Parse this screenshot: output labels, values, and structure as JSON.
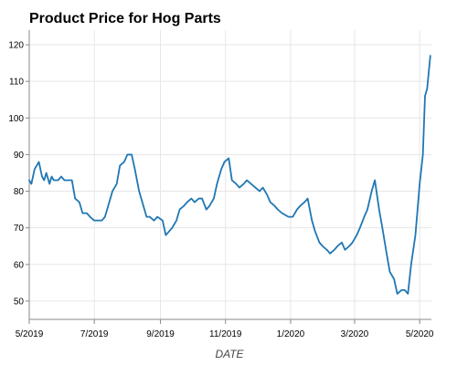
{
  "chart_data": {
    "type": "line",
    "title": "Product Price for Hog Parts",
    "xlabel": "DATE",
    "ylabel": "",
    "x_range": [
      "2019-05-01",
      "2020-05-12"
    ],
    "ylim": [
      45,
      124
    ],
    "grid": true,
    "legend": "none",
    "line_color": "#1f77b4",
    "x_ticks": [
      {
        "date": "2019-05-01",
        "label": "5/2019"
      },
      {
        "date": "2019-07-01",
        "label": "7/2019"
      },
      {
        "date": "2019-09-01",
        "label": "9/2019"
      },
      {
        "date": "2019-11-01",
        "label": "11/2019"
      },
      {
        "date": "2020-01-01",
        "label": "1/2020"
      },
      {
        "date": "2020-03-01",
        "label": "3/2020"
      },
      {
        "date": "2020-05-01",
        "label": "5/2020"
      }
    ],
    "y_ticks": [
      50,
      60,
      70,
      80,
      90,
      100,
      110,
      120
    ],
    "series": [
      {
        "x": [
          "2019-05-01",
          "2019-05-03",
          "2019-05-06",
          "2019-05-08",
          "2019-05-10",
          "2019-05-13",
          "2019-05-15",
          "2019-05-17",
          "2019-05-20",
          "2019-05-22",
          "2019-05-24",
          "2019-05-28",
          "2019-05-31",
          "2019-06-03",
          "2019-06-06",
          "2019-06-10",
          "2019-06-13",
          "2019-06-17",
          "2019-06-20",
          "2019-06-24",
          "2019-06-27",
          "2019-07-01",
          "2019-07-05",
          "2019-07-08",
          "2019-07-11",
          "2019-07-15",
          "2019-07-18",
          "2019-07-22",
          "2019-07-25",
          "2019-07-29",
          "2019-08-01",
          "2019-08-05",
          "2019-08-08",
          "2019-08-12",
          "2019-08-15",
          "2019-08-19",
          "2019-08-22",
          "2019-08-26",
          "2019-08-29",
          "2019-09-03",
          "2019-09-06",
          "2019-09-09",
          "2019-09-12",
          "2019-09-16",
          "2019-09-19",
          "2019-09-23",
          "2019-09-26",
          "2019-09-30",
          "2019-10-03",
          "2019-10-07",
          "2019-10-10",
          "2019-10-14",
          "2019-10-17",
          "2019-10-21",
          "2019-10-24",
          "2019-10-28",
          "2019-10-31",
          "2019-11-04",
          "2019-11-07",
          "2019-11-11",
          "2019-11-14",
          "2019-11-18",
          "2019-11-21",
          "2019-11-25",
          "2019-11-29",
          "2019-12-03",
          "2019-12-06",
          "2019-12-10",
          "2019-12-13",
          "2019-12-17",
          "2019-12-20",
          "2019-12-24",
          "2019-12-30",
          "2020-01-03",
          "2020-01-07",
          "2020-01-10",
          "2020-01-14",
          "2020-01-17",
          "2020-01-21",
          "2020-01-24",
          "2020-01-28",
          "2020-01-31",
          "2020-02-04",
          "2020-02-07",
          "2020-02-11",
          "2020-02-14",
          "2020-02-18",
          "2020-02-21",
          "2020-02-25",
          "2020-02-28",
          "2020-03-03",
          "2020-03-06",
          "2020-03-10",
          "2020-03-13",
          "2020-03-17",
          "2020-03-20",
          "2020-03-24",
          "2020-03-27",
          "2020-03-31",
          "2020-04-03",
          "2020-04-07",
          "2020-04-10",
          "2020-04-14",
          "2020-04-17",
          "2020-04-20",
          "2020-04-23",
          "2020-04-27",
          "2020-04-29",
          "2020-05-01",
          "2020-05-04",
          "2020-05-06",
          "2020-05-08",
          "2020-05-11"
        ],
        "y": [
          83,
          82,
          86,
          87,
          88,
          84,
          83,
          85,
          82,
          84,
          83,
          83,
          84,
          83,
          83,
          83,
          78,
          77,
          74,
          74,
          73,
          72,
          72,
          72,
          73,
          77,
          80,
          82,
          87,
          88,
          90,
          90,
          86,
          80,
          77,
          73,
          73,
          72,
          73,
          72,
          68,
          69,
          70,
          72,
          75,
          76,
          77,
          78,
          77,
          78,
          78,
          75,
          76,
          78,
          82,
          86,
          88,
          89,
          83,
          82,
          81,
          82,
          83,
          82,
          81,
          80,
          81,
          79,
          77,
          76,
          75,
          74,
          73,
          73,
          75,
          76,
          77,
          78,
          72,
          69,
          66,
          65,
          64,
          63,
          64,
          65,
          66,
          64,
          65,
          66,
          68,
          70,
          73,
          75,
          80,
          83,
          75,
          70,
          63,
          58,
          56,
          52,
          53,
          53,
          52,
          60,
          68,
          75,
          82,
          90,
          106,
          108,
          117
        ]
      }
    ]
  }
}
